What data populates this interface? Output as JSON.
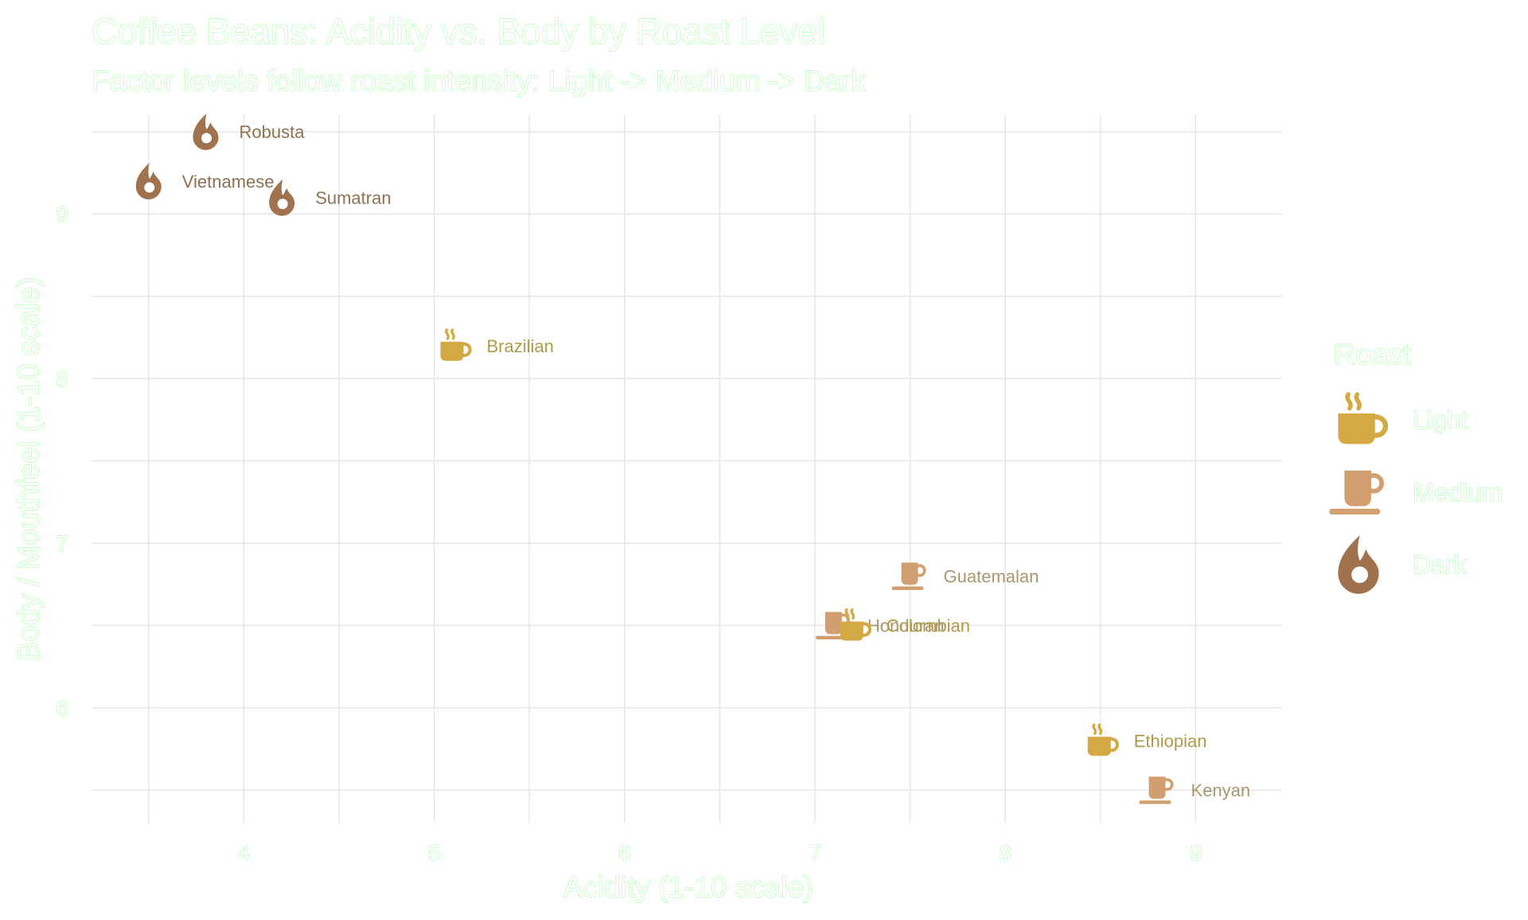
{
  "chart_data": {
    "type": "scatter",
    "title": "Coffee Beans: Acidity vs. Body by Roast Level",
    "subtitle": "Factor levels follow roast intensity: Light -> Medium -> Dark",
    "xlabel": "Acidity (1-10 scale)",
    "ylabel": "Body / Mouthfeel (1-10 scale)",
    "xlim": [
      3.2,
      9.45
    ],
    "ylim": [
      5.3,
      9.6
    ],
    "x_ticks": [
      "4",
      "5",
      "6",
      "7",
      "8",
      "9"
    ],
    "y_ticks": [
      "6",
      "7",
      "8",
      "9"
    ],
    "grid": true,
    "legend": {
      "title": "Roast",
      "position": "right",
      "entries": [
        {
          "label": "Light",
          "icon": "coffee-cup-icon",
          "color": "#D4A843"
        },
        {
          "label": "Medium",
          "icon": "mug-saucer-icon",
          "color": "#D2A070"
        },
        {
          "label": "Dark",
          "icon": "fire-drop-icon",
          "color": "#A0724E"
        }
      ]
    },
    "label_colors": {
      "Light": "#B09A48",
      "Medium": "#A89870",
      "Dark": "#8E7150"
    },
    "points": [
      {
        "name": "Robusta",
        "x": 3.8,
        "y": 9.5,
        "roast": "Dark"
      },
      {
        "name": "Vietnamese",
        "x": 3.5,
        "y": 9.2,
        "roast": "Dark"
      },
      {
        "name": "Sumatran",
        "x": 4.2,
        "y": 9.1,
        "roast": "Dark"
      },
      {
        "name": "Brazilian",
        "x": 5.1,
        "y": 8.2,
        "roast": "Light"
      },
      {
        "name": "Guatemalan",
        "x": 7.5,
        "y": 6.8,
        "roast": "Medium"
      },
      {
        "name": "Honduran",
        "x": 7.1,
        "y": 6.5,
        "roast": "Medium"
      },
      {
        "name": "Colombian",
        "x": 7.2,
        "y": 6.5,
        "roast": "Light"
      },
      {
        "name": "Ethiopian",
        "x": 8.5,
        "y": 5.8,
        "roast": "Light"
      },
      {
        "name": "Kenyan",
        "x": 8.8,
        "y": 5.5,
        "roast": "Medium"
      }
    ]
  }
}
